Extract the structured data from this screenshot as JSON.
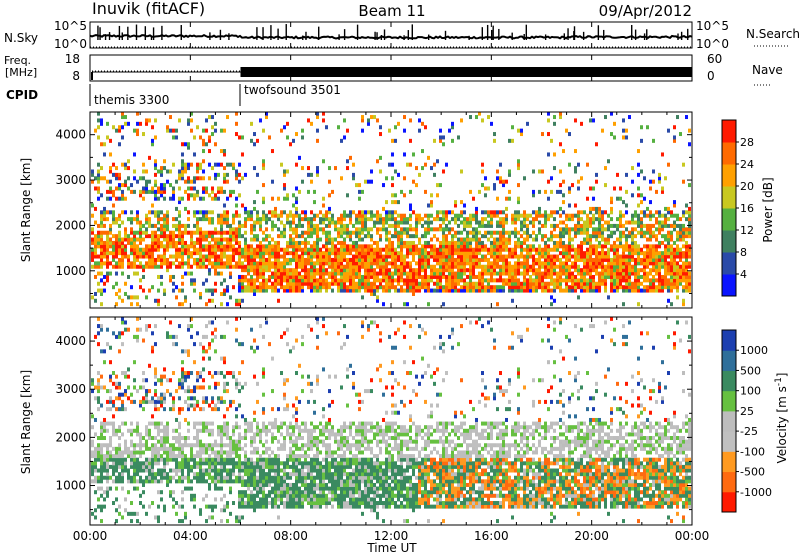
{
  "header": {
    "radar": "Inuvik (fitACF)",
    "beam": "Beam 11",
    "date": "09/Apr/2012"
  },
  "summary_panels": {
    "nsky_label": "N.Sky",
    "nsky_ticks": [
      "10^5",
      "10^0"
    ],
    "nsearch_label": "N.Search",
    "nsearch_ticks": [
      "10^5",
      "10^0"
    ],
    "freq_label_line1": "Freq.",
    "freq_label_line2": "[MHz]",
    "freq_ticks": [
      "18",
      "8"
    ],
    "nave_label": "Nave",
    "nave_ticks": [
      "60",
      "0"
    ],
    "cpid_label": "CPID",
    "cpid_programs": [
      {
        "name": "themis 3300",
        "start_hour": 0
      },
      {
        "name": "twofsound 3501",
        "start_hour": 6
      }
    ]
  },
  "axes": {
    "ylabel": "Slant Range [km]",
    "yticks": [
      "1000",
      "2000",
      "3000",
      "4000"
    ],
    "xticks": [
      "00:00",
      "04:00",
      "08:00",
      "12:00",
      "16:00",
      "20:00",
      "00:00"
    ],
    "xlabel": "Time UT"
  },
  "power_colorbar": {
    "label": "Power [dB]",
    "ticks": [
      "4",
      "8",
      "12",
      "16",
      "20",
      "24",
      "28"
    ],
    "colors": [
      "#0a14ff",
      "#2a4aa8",
      "#3f8060",
      "#55b040",
      "#c8c820",
      "#ffa000",
      "#ff6a00",
      "#ff1a00"
    ]
  },
  "velocity_colorbar": {
    "label": "Velocity [m s^-1]",
    "ticks": [
      "1000",
      "500",
      "100",
      "25",
      "-25",
      "-100",
      "-500",
      "-1000"
    ],
    "colors": [
      "#1c3fb0",
      "#2f6f9a",
      "#3a8a60",
      "#66c040",
      "#bdbdbd",
      "#c0c0c0",
      "#ff9a20",
      "#ff6a10",
      "#ff1a00"
    ]
  },
  "chart_data": [
    {
      "type": "heatmap",
      "title": "Power",
      "x": [
        0,
        24
      ],
      "ylim": [
        180,
        4500
      ],
      "colorbar_range": [
        0,
        30
      ],
      "notes_visible": "Strong echoes (20-30 dB) between ~500-1700 km most of the day; scattered weaker echoes 2000-4300 km"
    },
    {
      "type": "heatmap",
      "title": "Velocity",
      "x": [
        0,
        24
      ],
      "ylim": [
        180,
        4500
      ],
      "colorbar_range": [
        -1000,
        1000
      ],
      "notes_visible": "Low-velocity (grey) ground scatter near 1500-2200 km; green positive velocities 500-1500 km; orange negative velocities after ~13 UT"
    }
  ]
}
